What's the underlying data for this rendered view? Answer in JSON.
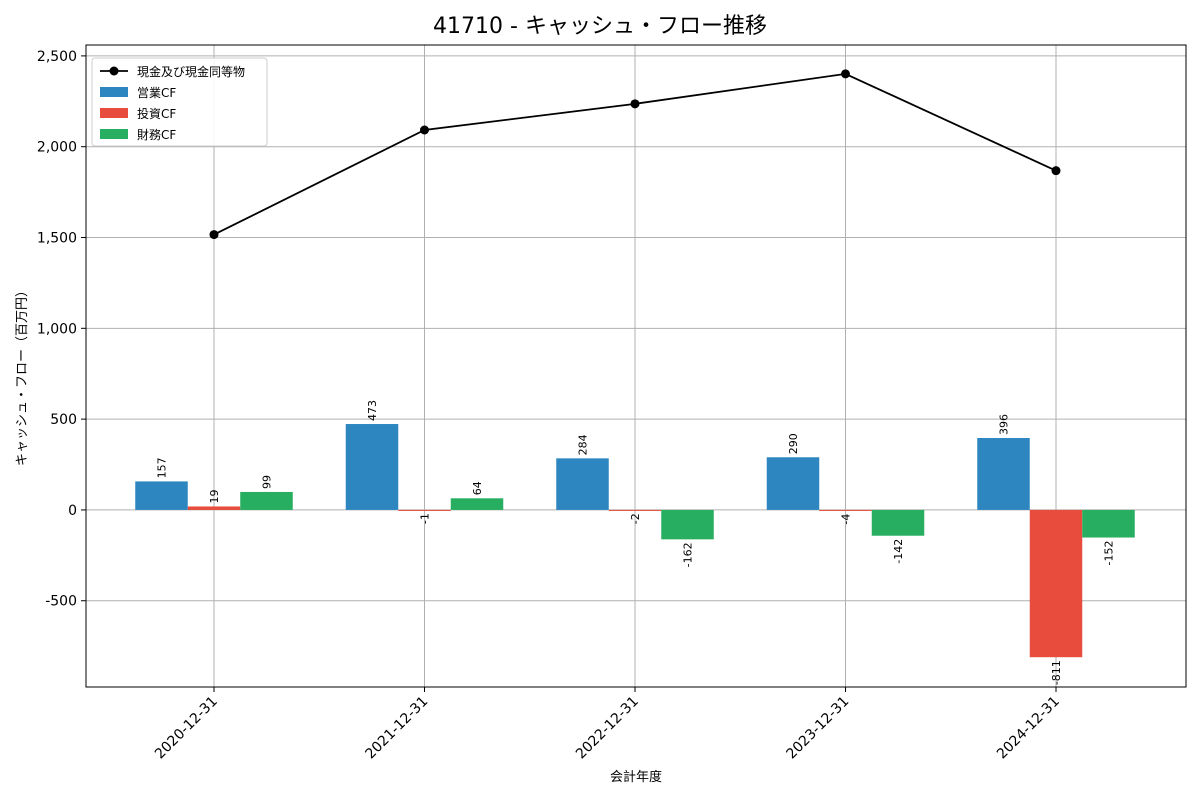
{
  "chart_data": {
    "type": "bar",
    "title": "41710 - キャッシュ・フロー推移",
    "xlabel": "会計年度",
    "ylabel": "キャッシュ・フロー（百万円）",
    "categories": [
      "2020-12-31",
      "2021-12-31",
      "2022-12-31",
      "2023-12-31",
      "2024-12-31"
    ],
    "ylim": [
      -975,
      2560
    ],
    "yticks": [
      -500,
      0,
      500,
      1000,
      1500,
      2000,
      2500
    ],
    "ytick_labels": [
      "-500",
      "0",
      "500",
      "1,000",
      "1,500",
      "2,000",
      "2,500"
    ],
    "grid": true,
    "legend_position": "top-left",
    "series": [
      {
        "name": "営業CF",
        "type": "bar",
        "color": "#2e86c1",
        "values": [
          157,
          473,
          284,
          290,
          396
        ],
        "labels": [
          "157",
          "473",
          "284",
          "290",
          "396"
        ]
      },
      {
        "name": "投資CF",
        "type": "bar",
        "color": "#e74c3c",
        "values": [
          19,
          -1,
          -2,
          -4,
          -811
        ],
        "labels": [
          "19",
          "-1",
          "-2",
          "-4",
          "-811"
        ]
      },
      {
        "name": "財務CF",
        "type": "bar",
        "color": "#27ae60",
        "values": [
          99,
          64,
          -162,
          -142,
          -152
        ],
        "labels": [
          "99",
          "64",
          "-162",
          "-142",
          "-152"
        ]
      },
      {
        "name": "現金及び現金同等物",
        "type": "line",
        "color": "#000000",
        "values": [
          1516,
          2092,
          2236,
          2401,
          1868
        ]
      }
    ]
  }
}
